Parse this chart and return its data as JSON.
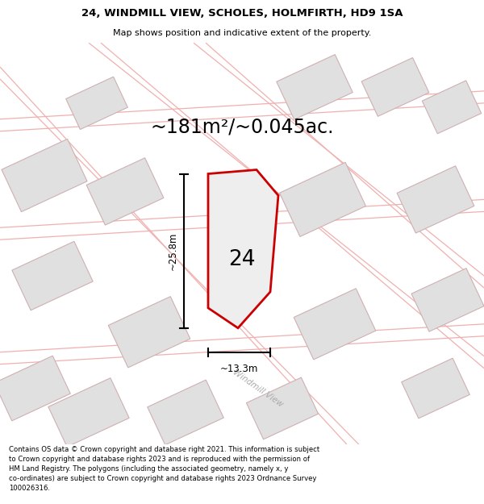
{
  "title_line1": "24, WINDMILL VIEW, SCHOLES, HOLMFIRTH, HD9 1SA",
  "title_line2": "Map shows position and indicative extent of the property.",
  "area_label": "~181m²/~0.045ac.",
  "plot_number": "24",
  "dim_height": "~25.8m",
  "dim_width": "~13.3m",
  "street_label": "Windmill View",
  "footer_text": "Contains OS data © Crown copyright and database right 2021. This information is subject to Crown copyright and database rights 2023 and is reproduced with the permission of HM Land Registry. The polygons (including the associated geometry, namely x, y co-ordinates) are subject to Crown copyright and database rights 2023 Ordnance Survey 100026316.",
  "bg_color": "#ffffff",
  "map_bg_color": "#ffffff",
  "plot_fill_color": "#eeeeee",
  "plot_outline_color": "#cc0000",
  "building_fill_color": "#e0e0e0",
  "building_outline_color": "#d0b0b0",
  "road_outline_color": "#f0b0b0",
  "dim_color": "#000000",
  "text_color": "#000000",
  "area_label_color": "#000000",
  "street_label_color": "#aaaaaa",
  "header_bg": "#ffffff",
  "footer_bg": "#ffffff"
}
